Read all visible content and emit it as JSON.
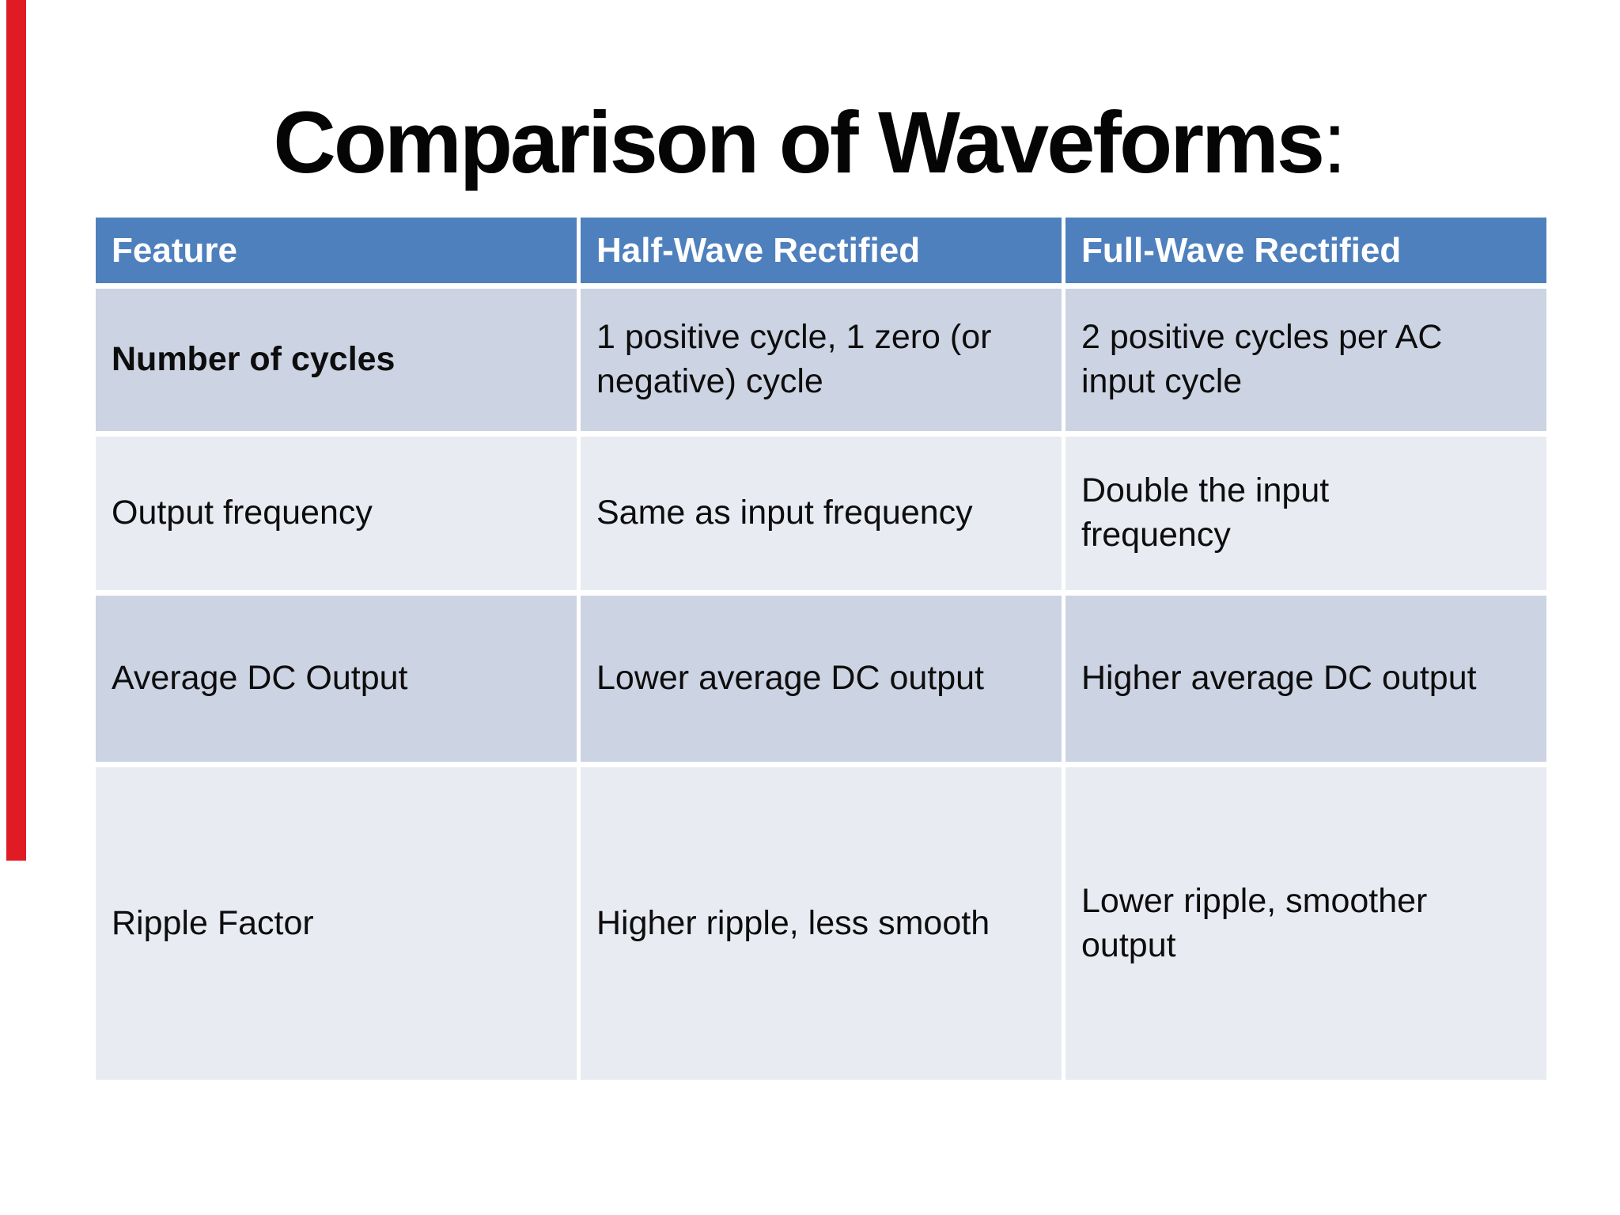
{
  "slide": {
    "title": {
      "main": "Comparison of Waveforms",
      "colon": ":"
    },
    "colors": {
      "page_bg": "#ffffff",
      "accent_red": "#e01b24",
      "header_bg": "#4e80bd",
      "header_text": "#ffffff",
      "band_dark": "#ccd3e3",
      "band_light": "#e9ebf2"
    },
    "table": {
      "columns": [
        "Feature",
        "Half-Wave Rectified",
        "Full-Wave Rectified"
      ],
      "rows": [
        {
          "feature": "Number of cycles",
          "half_wave": "1 positive cycle, 1 zero (or\nnegative) cycle",
          "full_wave": "2 positive cycles per AC\ninput cycle"
        },
        {
          "feature": "Output frequency",
          "half_wave": "Same as input frequency",
          "full_wave": "Double the input\nfrequency"
        },
        {
          "feature": "Average DC Output",
          "half_wave": "Lower average DC output",
          "full_wave": "Higher average DC output"
        },
        {
          "feature": "Ripple Factor",
          "half_wave": "Higher ripple, less smooth",
          "full_wave": "Lower ripple, smoother\noutput"
        }
      ]
    }
  }
}
